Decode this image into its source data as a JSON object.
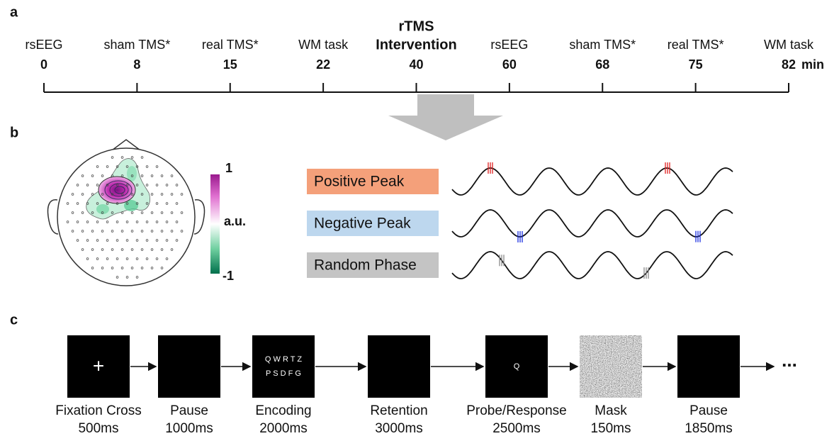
{
  "panel_labels": [
    "a",
    "b",
    "c"
  ],
  "timeline": {
    "events": [
      {
        "label_lines": [
          "rsEEG"
        ],
        "time": 0
      },
      {
        "label_lines": [
          "sham TMS*"
        ],
        "time": 8
      },
      {
        "label_lines": [
          "real TMS*"
        ],
        "time": 15
      },
      {
        "label_lines": [
          "WM task"
        ],
        "time": 22
      },
      {
        "label_lines": [
          "rTMS",
          "Intervention"
        ],
        "time": 40
      },
      {
        "label_lines": [
          "rsEEG"
        ],
        "time": 60
      },
      {
        "label_lines": [
          "sham TMS*"
        ],
        "time": 68
      },
      {
        "label_lines": [
          "real TMS*"
        ],
        "time": 75
      },
      {
        "label_lines": [
          "WM task"
        ],
        "time": 82
      }
    ],
    "unit": "min"
  },
  "topography": {
    "colorbar": {
      "max": "1",
      "label": "a.u.",
      "min": "-1"
    }
  },
  "conditions": [
    {
      "label": "Positive Peak",
      "color": "#f4a07a",
      "marker_color": "#e02020"
    },
    {
      "label": "Negative Peak",
      "color": "#bdd7ee",
      "marker_color": "#1a2ee0"
    },
    {
      "label": "Random Phase",
      "color": "#c4c4c4",
      "marker_color": "#888888"
    }
  ],
  "task": {
    "steps": [
      {
        "label": "Fixation Cross",
        "duration": "500ms",
        "screen": [
          "+"
        ]
      },
      {
        "label": "Pause",
        "duration": "1000ms"
      },
      {
        "label": "Encoding",
        "duration": "2000ms",
        "screen": [
          "Q W R T Z",
          "P S D F G"
        ]
      },
      {
        "label": "Retention",
        "duration": "3000ms"
      },
      {
        "label": "Probe/Response",
        "duration": "2500ms",
        "screen": [
          "Q"
        ]
      },
      {
        "label": "Mask",
        "duration": "150ms"
      },
      {
        "label": "Pause",
        "duration": "1850ms"
      }
    ],
    "continuation": "..."
  }
}
